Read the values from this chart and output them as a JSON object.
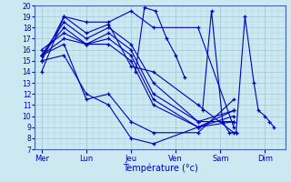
{
  "title": "Température (°c)",
  "bg_color": "#cce8f0",
  "grid_color": "#aad0e0",
  "line_color": "#0000bb",
  "ylim": [
    7,
    20
  ],
  "yticks": [
    7,
    8,
    9,
    10,
    11,
    12,
    13,
    14,
    15,
    16,
    17,
    18,
    19,
    20
  ],
  "day_labels": [
    "Mer",
    "Lun",
    "Jeu",
    "Ven",
    "Sam",
    "Dim"
  ],
  "day_x": [
    0,
    1,
    2,
    3,
    4,
    5
  ],
  "lines": [
    {
      "x": [
        0.0,
        0.5,
        1.0,
        1.5,
        2.0,
        2.5,
        3.5,
        4.3
      ],
      "y": [
        15.0,
        19.0,
        18.5,
        18.5,
        19.5,
        18.0,
        18.0,
        9.0
      ]
    },
    {
      "x": [
        0.0,
        0.5,
        1.0,
        1.5,
        2.0,
        2.5,
        3.5,
        4.3
      ],
      "y": [
        14.0,
        19.0,
        17.5,
        18.3,
        14.5,
        14.0,
        11.0,
        8.5
      ]
    },
    {
      "x": [
        0.0,
        0.5,
        1.0,
        1.5,
        2.0,
        2.5,
        3.5,
        4.3
      ],
      "y": [
        15.5,
        18.5,
        17.0,
        18.0,
        16.5,
        13.0,
        9.5,
        9.5
      ]
    },
    {
      "x": [
        0.0,
        0.5,
        1.0,
        1.5,
        2.0,
        2.5,
        3.5,
        4.3
      ],
      "y": [
        15.5,
        18.0,
        16.5,
        17.5,
        16.0,
        12.0,
        9.5,
        10.5
      ]
    },
    {
      "x": [
        0.0,
        0.5,
        1.0,
        1.5,
        2.0,
        2.5,
        3.5,
        4.3
      ],
      "y": [
        16.0,
        17.5,
        16.5,
        17.0,
        15.5,
        11.5,
        9.0,
        10.0
      ]
    },
    {
      "x": [
        0.0,
        0.5,
        1.0,
        1.5,
        2.0,
        2.5,
        3.5,
        4.3
      ],
      "y": [
        15.5,
        17.0,
        16.5,
        16.5,
        15.0,
        11.0,
        9.0,
        9.5
      ]
    },
    {
      "x": [
        0.0,
        0.5,
        1.0,
        1.5,
        2.0,
        2.5,
        3.5,
        4.3
      ],
      "y": [
        15.5,
        16.5,
        11.5,
        12.0,
        9.5,
        8.5,
        8.5,
        11.5
      ]
    },
    {
      "x": [
        0.0,
        0.5,
        1.0,
        1.5,
        2.0,
        2.5,
        3.5,
        4.3
      ],
      "y": [
        15.0,
        15.5,
        12.0,
        11.0,
        8.0,
        7.5,
        9.0,
        10.5
      ]
    },
    {
      "x": [
        2.1,
        2.3,
        2.55,
        2.8,
        3.0,
        3.2
      ],
      "y": [
        14.0,
        19.8,
        19.5,
        17.0,
        15.5,
        13.5
      ]
    },
    {
      "x": [
        3.6,
        3.8,
        4.05,
        4.2,
        4.35
      ],
      "y": [
        10.5,
        19.5,
        9.5,
        8.5,
        8.5
      ]
    },
    {
      "x": [
        4.35,
        4.55,
        4.75,
        4.85,
        5.0,
        5.1,
        5.2
      ],
      "y": [
        8.5,
        19.0,
        13.0,
        10.5,
        10.0,
        9.5,
        9.0
      ]
    }
  ]
}
